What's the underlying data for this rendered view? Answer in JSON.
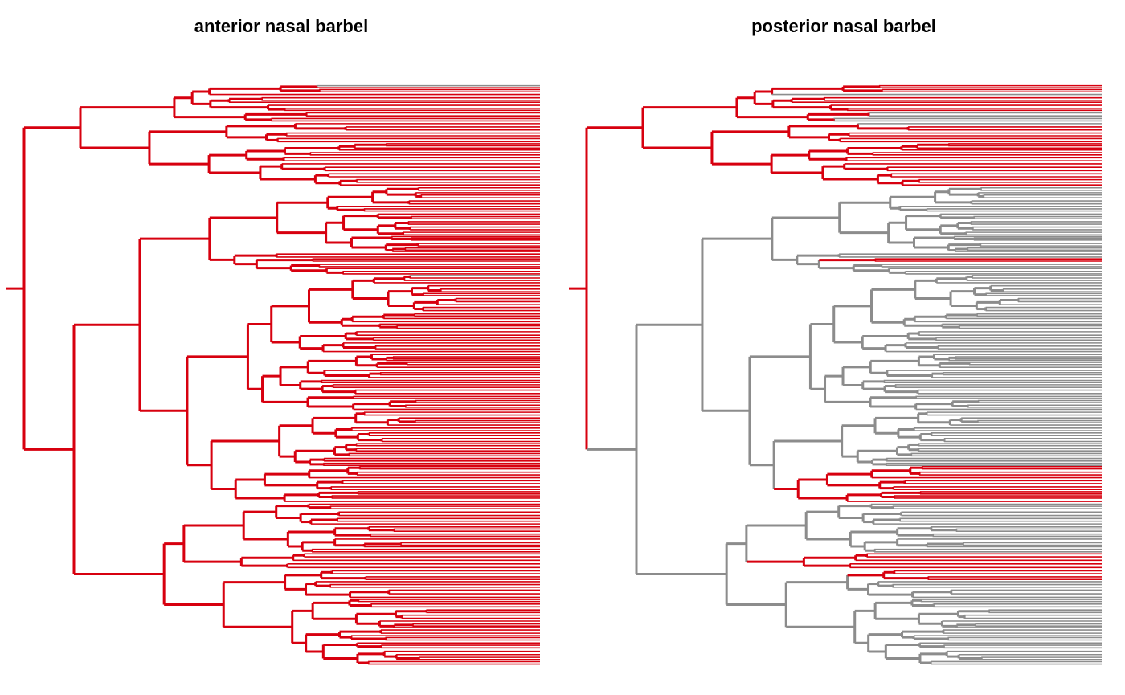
{
  "panels": [
    {
      "title": "anterior nasal barbel",
      "state_color": "#d7000f",
      "background_color": "#8c8c8c",
      "dominant_state": "present",
      "grey_patches": [
        "top root edge tip",
        "thin line near middle of tip column"
      ]
    },
    {
      "title": "posterior nasal barbel",
      "state_color": "#d7000f",
      "background_color": "#8c8c8c",
      "dominant_state": "absent (grey) except top clade and scattered red subclades"
    }
  ]
}
